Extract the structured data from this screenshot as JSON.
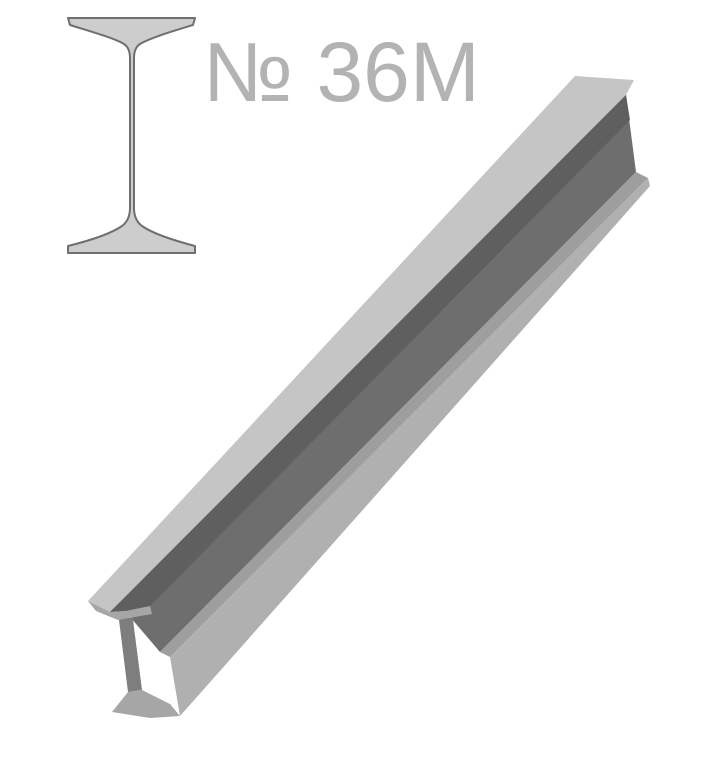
{
  "profile": {
    "label": "№ 36M"
  },
  "colors": {
    "background": "#ffffff",
    "label_text": "#b3b3b3",
    "section_fill": "#cdcdcd",
    "section_outline": "#6f6f6f",
    "flange_top": "#c5c5c5",
    "web_face": "#6e6e6e",
    "web_shadow": "#5f5f5f",
    "flange_edge": "#9e9e9e",
    "flange_side": "#b0b0b0",
    "end_face": "#7e7e7e",
    "end_flange": "#a6a6a6"
  }
}
